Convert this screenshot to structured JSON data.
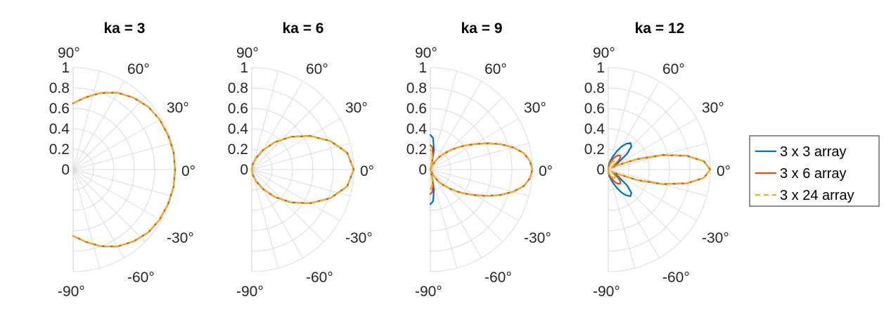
{
  "chart_data": {
    "type": "polar-line",
    "theta_range_deg": [
      -90,
      90
    ],
    "theta_ticks": [
      "-90°",
      "-60°",
      "-30°",
      "0°",
      "30°",
      "60°",
      "90°"
    ],
    "r_range": [
      0,
      1
    ],
    "r_ticks": [
      "0",
      "0.2",
      "0.4",
      "0.6",
      "0.8",
      "1"
    ],
    "grid": true,
    "legend_position": "right",
    "series_meta": [
      {
        "name": "3 x 3 array",
        "color": "#0072BD",
        "style": "solid"
      },
      {
        "name": "3 x 6 array",
        "color": "#D95319",
        "style": "solid"
      },
      {
        "name": "3 x 24 array",
        "color": "#EDB120",
        "style": "dashed"
      }
    ],
    "panels": [
      {
        "title": "ka = 3",
        "series": [
          {
            "name": "3 x 3 array",
            "theta": [
              -90,
              -80,
              -70,
              -60,
              -50,
              -40,
              -30,
              -20,
              -10,
              0,
              10,
              20,
              30,
              40,
              50,
              60,
              70,
              80,
              90
            ],
            "r": [
              0.65,
              0.72,
              0.8,
              0.87,
              0.92,
              0.96,
              0.98,
              0.99,
              1.0,
              1.0,
              1.0,
              0.99,
              0.98,
              0.96,
              0.92,
              0.87,
              0.8,
              0.72,
              0.65
            ]
          },
          {
            "name": "3 x 6 array",
            "theta": [
              -90,
              -80,
              -70,
              -60,
              -50,
              -40,
              -30,
              -20,
              -10,
              0,
              10,
              20,
              30,
              40,
              50,
              60,
              70,
              80,
              90
            ],
            "r": [
              0.65,
              0.72,
              0.8,
              0.87,
              0.92,
              0.96,
              0.98,
              0.99,
              1.0,
              1.0,
              1.0,
              0.99,
              0.98,
              0.96,
              0.92,
              0.87,
              0.8,
              0.72,
              0.65
            ]
          },
          {
            "name": "3 x 24 array",
            "theta": [
              -90,
              -80,
              -70,
              -60,
              -50,
              -40,
              -30,
              -20,
              -10,
              0,
              10,
              20,
              30,
              40,
              50,
              60,
              70,
              80,
              90
            ],
            "r": [
              0.65,
              0.72,
              0.8,
              0.87,
              0.92,
              0.96,
              0.98,
              0.99,
              1.0,
              1.0,
              1.0,
              0.99,
              0.98,
              0.96,
              0.92,
              0.87,
              0.8,
              0.72,
              0.65
            ]
          }
        ]
      },
      {
        "title": "ka = 6",
        "series": [
          {
            "name": "3 x 3 array",
            "theta": [
              -90,
              -80,
              -70,
              -60,
              -50,
              -40,
              -30,
              -20,
              -10,
              0,
              10,
              20,
              30,
              40,
              50,
              60,
              70,
              80,
              90
            ],
            "r": [
              0.0,
              0.05,
              0.12,
              0.22,
              0.35,
              0.5,
              0.66,
              0.82,
              0.95,
              1.0,
              0.95,
              0.82,
              0.66,
              0.5,
              0.35,
              0.22,
              0.12,
              0.05,
              0.0
            ]
          },
          {
            "name": "3 x 6 array",
            "theta": [
              -90,
              -80,
              -70,
              -60,
              -50,
              -40,
              -30,
              -20,
              -10,
              0,
              10,
              20,
              30,
              40,
              50,
              60,
              70,
              80,
              90
            ],
            "r": [
              0.0,
              0.05,
              0.12,
              0.22,
              0.35,
              0.5,
              0.66,
              0.82,
              0.95,
              1.0,
              0.95,
              0.82,
              0.66,
              0.5,
              0.35,
              0.22,
              0.12,
              0.05,
              0.0
            ]
          },
          {
            "name": "3 x 24 array",
            "theta": [
              -90,
              -80,
              -70,
              -60,
              -50,
              -40,
              -30,
              -20,
              -10,
              0,
              10,
              20,
              30,
              40,
              50,
              60,
              70,
              80,
              90
            ],
            "r": [
              0.0,
              0.05,
              0.12,
              0.22,
              0.35,
              0.5,
              0.66,
              0.82,
              0.95,
              1.0,
              0.95,
              0.82,
              0.66,
              0.5,
              0.35,
              0.22,
              0.12,
              0.05,
              0.0
            ]
          }
        ]
      },
      {
        "title": "ka = 9",
        "series": [
          {
            "name": "3 x 3 array",
            "theta": [
              -90,
              -85,
              -80,
              -75,
              -70,
              -65,
              -60,
              -55,
              -50,
              -45,
              -40,
              -35,
              -30,
              -25,
              -20,
              -15,
              -10,
              -5,
              0,
              5,
              10,
              15,
              20,
              25,
              30,
              35,
              40,
              45,
              50,
              55,
              60,
              65,
              70,
              75,
              80,
              85,
              90
            ],
            "r": [
              0.34,
              0.31,
              0.2,
              0.05,
              0.0,
              0.04,
              0.09,
              0.15,
              0.2,
              0.26,
              0.33,
              0.41,
              0.5,
              0.61,
              0.73,
              0.84,
              0.93,
              0.98,
              1.0,
              0.98,
              0.93,
              0.84,
              0.73,
              0.61,
              0.5,
              0.41,
              0.33,
              0.26,
              0.2,
              0.15,
              0.09,
              0.04,
              0.0,
              0.05,
              0.2,
              0.31,
              0.34
            ]
          },
          {
            "name": "3 x 6 array",
            "theta": [
              -90,
              -85,
              -80,
              -75,
              -70,
              -65,
              -60,
              -55,
              -50,
              -45,
              -40,
              -35,
              -30,
              -25,
              -20,
              -15,
              -10,
              -5,
              0,
              5,
              10,
              15,
              20,
              25,
              30,
              35,
              40,
              45,
              50,
              55,
              60,
              65,
              70,
              75,
              80,
              85,
              90
            ],
            "r": [
              0.24,
              0.22,
              0.14,
              0.04,
              0.0,
              0.04,
              0.09,
              0.15,
              0.2,
              0.26,
              0.33,
              0.41,
              0.5,
              0.61,
              0.73,
              0.84,
              0.93,
              0.98,
              1.0,
              0.98,
              0.93,
              0.84,
              0.73,
              0.61,
              0.5,
              0.41,
              0.33,
              0.26,
              0.2,
              0.15,
              0.09,
              0.04,
              0.0,
              0.04,
              0.14,
              0.22,
              0.24
            ]
          },
          {
            "name": "3 x 24 array",
            "theta": [
              -90,
              -85,
              -80,
              -75,
              -70,
              -65,
              -60,
              -55,
              -50,
              -45,
              -40,
              -35,
              -30,
              -25,
              -20,
              -15,
              -10,
              -5,
              0,
              5,
              10,
              15,
              20,
              25,
              30,
              35,
              40,
              45,
              50,
              55,
              60,
              65,
              70,
              75,
              80,
              85,
              90
            ],
            "r": [
              0.19,
              0.17,
              0.11,
              0.03,
              0.0,
              0.04,
              0.09,
              0.15,
              0.2,
              0.26,
              0.33,
              0.41,
              0.5,
              0.61,
              0.73,
              0.84,
              0.93,
              0.98,
              1.0,
              0.98,
              0.93,
              0.84,
              0.73,
              0.61,
              0.5,
              0.41,
              0.33,
              0.26,
              0.2,
              0.15,
              0.09,
              0.04,
              0.0,
              0.03,
              0.11,
              0.17,
              0.19
            ]
          }
        ]
      },
      {
        "title": "ka = 12",
        "series": [
          {
            "name": "3 x 3 array",
            "theta": [
              -90,
              -85,
              -80,
              -75,
              -70,
              -65,
              -60,
              -55,
              -50,
              -45,
              -40,
              -35,
              -30,
              -25,
              -20,
              -15,
              -10,
              -5,
              0,
              5,
              10,
              15,
              20,
              25,
              30,
              35,
              40,
              45,
              50,
              55,
              60,
              65,
              70,
              75,
              80,
              85,
              90
            ],
            "r": [
              0.0,
              0.03,
              0.07,
              0.1,
              0.14,
              0.2,
              0.26,
              0.31,
              0.34,
              0.32,
              0.24,
              0.12,
              0.04,
              0.1,
              0.3,
              0.55,
              0.78,
              0.94,
              1.0,
              0.94,
              0.78,
              0.55,
              0.3,
              0.1,
              0.04,
              0.12,
              0.24,
              0.32,
              0.34,
              0.31,
              0.26,
              0.2,
              0.14,
              0.1,
              0.07,
              0.03,
              0.0
            ]
          },
          {
            "name": "3 x 6 array",
            "theta": [
              -90,
              -85,
              -80,
              -75,
              -70,
              -65,
              -60,
              -55,
              -50,
              -45,
              -40,
              -35,
              -30,
              -25,
              -20,
              -15,
              -10,
              -5,
              0,
              5,
              10,
              15,
              20,
              25,
              30,
              35,
              40,
              45,
              50,
              55,
              60,
              65,
              70,
              75,
              80,
              85,
              90
            ],
            "r": [
              0.0,
              0.02,
              0.04,
              0.07,
              0.09,
              0.12,
              0.15,
              0.17,
              0.18,
              0.17,
              0.13,
              0.07,
              0.04,
              0.1,
              0.3,
              0.55,
              0.78,
              0.94,
              1.0,
              0.94,
              0.78,
              0.55,
              0.3,
              0.1,
              0.04,
              0.07,
              0.13,
              0.17,
              0.18,
              0.17,
              0.15,
              0.12,
              0.09,
              0.07,
              0.04,
              0.02,
              0.0
            ]
          },
          {
            "name": "3 x 24 array",
            "theta": [
              -90,
              -85,
              -80,
              -75,
              -70,
              -65,
              -60,
              -55,
              -50,
              -45,
              -40,
              -35,
              -30,
              -25,
              -20,
              -15,
              -10,
              -5,
              0,
              5,
              10,
              15,
              20,
              25,
              30,
              35,
              40,
              45,
              50,
              55,
              60,
              65,
              70,
              75,
              80,
              85,
              90
            ],
            "r": [
              0.0,
              0.01,
              0.03,
              0.05,
              0.06,
              0.08,
              0.09,
              0.1,
              0.1,
              0.09,
              0.07,
              0.05,
              0.04,
              0.1,
              0.3,
              0.55,
              0.78,
              0.94,
              1.0,
              0.94,
              0.78,
              0.55,
              0.3,
              0.1,
              0.04,
              0.05,
              0.07,
              0.09,
              0.1,
              0.1,
              0.09,
              0.08,
              0.06,
              0.05,
              0.03,
              0.01,
              0.0
            ]
          }
        ]
      }
    ]
  }
}
